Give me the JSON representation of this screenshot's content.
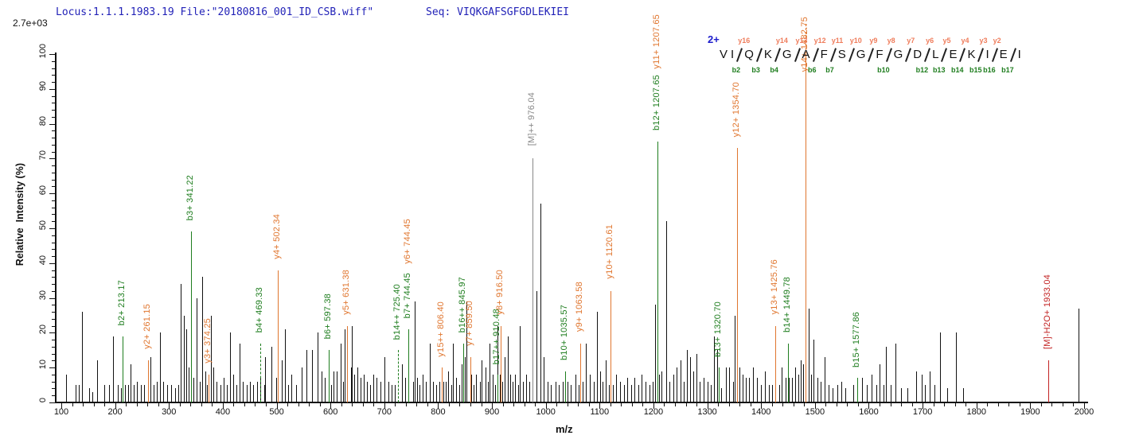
{
  "header": {
    "locus_file": "Locus:1.1.1.1983.19 File:\"20180816_001_ID_CSB.wiff\"",
    "seq": "Seq: VIQKGAFSGFGDLEKIEI",
    "text_color": "#2323b8"
  },
  "intensity_scale_label": "2.7e+03",
  "precursor_charge_label": "2+",
  "colors": {
    "b_ion": "#1e7d1e",
    "y_ion": "#e0762f",
    "y_seq_label": "#ef7d5c",
    "precursor": "#888888",
    "neutral_loss": "#c22222",
    "background_peak": "#111111",
    "header_blue": "#2323b8"
  },
  "sequence_annotation": {
    "cells": [
      {
        "t": "V"
      },
      {
        "t": "I"
      },
      {
        "cut": {
          "y": "y16",
          "b": "b2"
        }
      },
      {
        "t": "Q"
      },
      {
        "cut": {
          "y": "",
          "b": "b3"
        }
      },
      {
        "t": "K"
      },
      {
        "cut": {
          "y": "y14",
          "b": "b4"
        }
      },
      {
        "t": "G"
      },
      {
        "cut": {
          "y": "y13",
          "b": ""
        }
      },
      {
        "t": "A"
      },
      {
        "cut": {
          "y": "y12",
          "b": "b6"
        }
      },
      {
        "t": "F"
      },
      {
        "cut": {
          "y": "y11",
          "b": "b7"
        }
      },
      {
        "t": "S"
      },
      {
        "cut": {
          "y": "y10",
          "b": ""
        }
      },
      {
        "t": "G"
      },
      {
        "cut": {
          "y": "y9",
          "b": ""
        }
      },
      {
        "t": "F"
      },
      {
        "cut": {
          "y": "y8",
          "b": "b10"
        }
      },
      {
        "t": "G"
      },
      {
        "cut": {
          "y": "y7",
          "b": ""
        }
      },
      {
        "t": "D"
      },
      {
        "cut": {
          "y": "y6",
          "b": "b12"
        }
      },
      {
        "t": "L"
      },
      {
        "cut": {
          "y": "y5",
          "b": "b13"
        }
      },
      {
        "t": "E"
      },
      {
        "cut": {
          "y": "y4",
          "b": "b14"
        }
      },
      {
        "t": "K"
      },
      {
        "cut": {
          "y": "y3",
          "b": "b15"
        }
      },
      {
        "t": "I"
      },
      {
        "cut": {
          "y": "y2",
          "b": "b16"
        }
      },
      {
        "t": "E"
      },
      {
        "cut": {
          "y": "",
          "b": "b17"
        }
      },
      {
        "t": "I"
      }
    ]
  },
  "chart_data": {
    "type": "bar",
    "subtype": "ms2-stick-spectrum",
    "title": "",
    "xlabel": "m/z",
    "ylabel": "Relative  Intensity (%)",
    "xlim": [
      100,
      2000
    ],
    "ylim": [
      0,
      100
    ],
    "x_major_tick": 100,
    "x_minor_tick": 20,
    "y_major_tick": 10,
    "y_minor_tick": 2,
    "grid": false,
    "legend": false,
    "peptide_sequence": "VIQKGAFSGFGDLEKIEI",
    "precursor_charge": "2+",
    "labeled_peaks": [
      {
        "label": "b2+ 213.17",
        "mz": 213.17,
        "intensity": 19,
        "ion": "b"
      },
      {
        "label": "y2+ 261.15",
        "mz": 261.15,
        "intensity": 12,
        "ion": "y"
      },
      {
        "label": "b3+ 341.22",
        "mz": 341.22,
        "intensity": 49,
        "ion": "b"
      },
      {
        "label": "y3+ 374.25",
        "mz": 374.25,
        "intensity": 8,
        "ion": "y"
      },
      {
        "label": "b4+ 469.33",
        "mz": 469.33,
        "intensity": 17,
        "ion": "b",
        "dashed": true
      },
      {
        "label": "y4+ 502.34",
        "mz": 502.34,
        "intensity": 38,
        "ion": "y"
      },
      {
        "label": "b6+ 597.38",
        "mz": 597.38,
        "intensity": 15,
        "ion": "b"
      },
      {
        "label": "y5+ 631.38",
        "mz": 631.38,
        "intensity": 22,
        "ion": "y"
      },
      {
        "label": "b14++ 725.40",
        "mz": 725.4,
        "intensity": 15,
        "ion": "b",
        "dashed": true
      },
      {
        "label": "b7+ 744.45",
        "mz": 744.45,
        "intensity": 21,
        "ion": "b"
      },
      {
        "label": "y6+ 744.45",
        "mz": 744.45,
        "intensity": 21,
        "ion": "y",
        "lift": 68,
        "noline": true
      },
      {
        "label": "y15++ 806.40",
        "mz": 806.4,
        "intensity": 10,
        "ion": "y"
      },
      {
        "label": "b16++ 845.97",
        "mz": 845.97,
        "intensity": 17,
        "ion": "b"
      },
      {
        "label": "y7+ 859.50",
        "mz": 859.5,
        "intensity": 13,
        "ion": "y"
      },
      {
        "label": "b17++ 910.48",
        "mz": 910.48,
        "intensity": 8,
        "ion": "b"
      },
      {
        "label": "y8+ 916.50",
        "mz": 916.5,
        "intensity": 22,
        "ion": "y"
      },
      {
        "label": "[M]++ 976.04",
        "mz": 976.04,
        "intensity": 70,
        "ion": "precursor"
      },
      {
        "label": "b10+ 1035.57",
        "mz": 1035.57,
        "intensity": 9,
        "ion": "b"
      },
      {
        "label": "y9+ 1063.58",
        "mz": 1063.58,
        "intensity": 17,
        "ion": "y"
      },
      {
        "label": "y10+ 1120.61",
        "mz": 1120.61,
        "intensity": 32,
        "ion": "y"
      },
      {
        "label": "b12+ 1207.65",
        "mz": 1207.65,
        "intensity": 75,
        "ion": "b"
      },
      {
        "label": "y11+ 1207.65",
        "mz": 1207.65,
        "intensity": 75,
        "ion": "y",
        "lift": 76,
        "noline": true
      },
      {
        "label": "b13+ 1320.70",
        "mz": 1320.7,
        "intensity": 10,
        "ion": "b"
      },
      {
        "label": "y12+ 1354.70",
        "mz": 1354.7,
        "intensity": 73,
        "ion": "y"
      },
      {
        "label": "y13+ 1425.76",
        "mz": 1425.76,
        "intensity": 22,
        "ion": "y"
      },
      {
        "label": "b14+ 1449.78",
        "mz": 1449.78,
        "intensity": 17,
        "ion": "b"
      },
      {
        "label": "y14+ 1482.75",
        "mz": 1482.75,
        "intensity": 100,
        "ion": "y",
        "lift": -36
      },
      {
        "label": "b15+ 1577.86",
        "mz": 1577.86,
        "intensity": 7,
        "ion": "b"
      },
      {
        "label": "[M]-H2O+ 1933.04",
        "mz": 1933.04,
        "intensity": 12,
        "ion": "neutral-loss"
      }
    ],
    "background_peaks": [
      [
        109,
        8
      ],
      [
        126,
        5
      ],
      [
        133,
        5
      ],
      [
        139,
        26
      ],
      [
        152,
        4
      ],
      [
        158,
        3
      ],
      [
        166,
        12
      ],
      [
        180,
        5
      ],
      [
        189,
        5
      ],
      [
        196,
        19
      ],
      [
        205,
        5
      ],
      [
        211,
        4
      ],
      [
        218,
        5
      ],
      [
        224,
        5
      ],
      [
        228,
        11
      ],
      [
        234,
        5
      ],
      [
        241,
        6
      ],
      [
        248,
        5
      ],
      [
        254,
        5
      ],
      [
        266,
        13
      ],
      [
        271,
        5
      ],
      [
        277,
        6
      ],
      [
        283,
        20
      ],
      [
        289,
        6
      ],
      [
        296,
        5
      ],
      [
        304,
        5
      ],
      [
        311,
        4
      ],
      [
        317,
        5
      ],
      [
        322,
        34
      ],
      [
        327,
        25
      ],
      [
        332,
        21
      ],
      [
        337,
        10
      ],
      [
        345,
        7
      ],
      [
        352,
        30
      ],
      [
        357,
        6
      ],
      [
        362,
        36
      ],
      [
        368,
        9
      ],
      [
        371,
        5
      ],
      [
        378,
        25
      ],
      [
        383,
        10
      ],
      [
        389,
        6
      ],
      [
        396,
        5
      ],
      [
        402,
        7
      ],
      [
        408,
        5
      ],
      [
        413,
        20
      ],
      [
        419,
        8
      ],
      [
        426,
        5
      ],
      [
        431,
        17
      ],
      [
        437,
        6
      ],
      [
        444,
        5
      ],
      [
        451,
        6
      ],
      [
        457,
        5
      ],
      [
        464,
        6
      ],
      [
        470,
        7
      ],
      [
        477,
        5
      ],
      [
        479,
        13
      ],
      [
        491,
        16
      ],
      [
        499,
        7
      ],
      [
        509,
        12
      ],
      [
        515,
        21
      ],
      [
        521,
        5
      ],
      [
        528,
        8
      ],
      [
        536,
        5
      ],
      [
        547,
        10
      ],
      [
        555,
        15
      ],
      [
        566,
        15
      ],
      [
        576,
        20
      ],
      [
        583,
        9
      ],
      [
        590,
        7
      ],
      [
        601,
        5
      ],
      [
        605,
        9
      ],
      [
        612,
        9
      ],
      [
        619,
        17
      ],
      [
        623,
        6
      ],
      [
        627,
        21
      ],
      [
        638,
        10
      ],
      [
        640,
        22
      ],
      [
        644,
        8
      ],
      [
        650,
        10
      ],
      [
        656,
        7
      ],
      [
        662,
        8
      ],
      [
        668,
        6
      ],
      [
        674,
        5
      ],
      [
        680,
        8
      ],
      [
        686,
        7
      ],
      [
        693,
        6
      ],
      [
        700,
        13
      ],
      [
        707,
        6
      ],
      [
        714,
        5
      ],
      [
        719,
        5
      ],
      [
        733,
        11
      ],
      [
        739,
        7
      ],
      [
        753,
        6
      ],
      [
        756,
        29
      ],
      [
        761,
        7
      ],
      [
        766,
        5
      ],
      [
        771,
        8
      ],
      [
        777,
        6
      ],
      [
        785,
        17
      ],
      [
        790,
        6
      ],
      [
        796,
        5
      ],
      [
        802,
        6
      ],
      [
        809,
        6
      ],
      [
        814,
        6
      ],
      [
        819,
        9
      ],
      [
        824,
        5
      ],
      [
        828,
        17
      ],
      [
        833,
        7
      ],
      [
        839,
        5
      ],
      [
        843,
        11
      ],
      [
        849,
        13
      ],
      [
        853,
        29
      ],
      [
        862,
        8
      ],
      [
        866,
        5
      ],
      [
        871,
        8
      ],
      [
        877,
        6
      ],
      [
        881,
        12
      ],
      [
        888,
        10
      ],
      [
        892,
        6
      ],
      [
        896,
        17
      ],
      [
        901,
        8
      ],
      [
        906,
        5
      ],
      [
        910,
        22
      ],
      [
        914,
        8
      ],
      [
        919,
        6
      ],
      [
        924,
        13
      ],
      [
        929,
        19
      ],
      [
        934,
        8
      ],
      [
        938,
        6
      ],
      [
        943,
        8
      ],
      [
        948,
        5
      ],
      [
        951,
        22
      ],
      [
        957,
        6
      ],
      [
        963,
        8
      ],
      [
        969,
        6
      ],
      [
        982,
        32
      ],
      [
        990,
        57
      ],
      [
        996,
        13
      ],
      [
        1003,
        6
      ],
      [
        1010,
        5
      ],
      [
        1018,
        6
      ],
      [
        1024,
        5
      ],
      [
        1031,
        6
      ],
      [
        1040,
        6
      ],
      [
        1047,
        5
      ],
      [
        1055,
        8
      ],
      [
        1061,
        5
      ],
      [
        1068,
        6
      ],
      [
        1075,
        17
      ],
      [
        1082,
        8
      ],
      [
        1089,
        6
      ],
      [
        1095,
        26
      ],
      [
        1101,
        9
      ],
      [
        1106,
        6
      ],
      [
        1112,
        12
      ],
      [
        1118,
        5
      ],
      [
        1125,
        5
      ],
      [
        1131,
        8
      ],
      [
        1138,
        6
      ],
      [
        1145,
        5
      ],
      [
        1151,
        7
      ],
      [
        1158,
        5
      ],
      [
        1164,
        7
      ],
      [
        1172,
        5
      ],
      [
        1178,
        8
      ],
      [
        1185,
        6
      ],
      [
        1192,
        5
      ],
      [
        1199,
        6
      ],
      [
        1203,
        28
      ],
      [
        1210,
        8
      ],
      [
        1215,
        9
      ],
      [
        1224,
        52
      ],
      [
        1230,
        6
      ],
      [
        1237,
        8
      ],
      [
        1243,
        10
      ],
      [
        1250,
        12
      ],
      [
        1256,
        6
      ],
      [
        1262,
        15
      ],
      [
        1268,
        13
      ],
      [
        1274,
        9
      ],
      [
        1280,
        14
      ],
      [
        1286,
        6
      ],
      [
        1293,
        7
      ],
      [
        1300,
        6
      ],
      [
        1307,
        5
      ],
      [
        1313,
        19
      ],
      [
        1318,
        15
      ],
      [
        1326,
        4
      ],
      [
        1335,
        10
      ],
      [
        1341,
        10
      ],
      [
        1348,
        6
      ],
      [
        1351,
        25
      ],
      [
        1356,
        18
      ],
      [
        1360,
        10
      ],
      [
        1366,
        8
      ],
      [
        1371,
        7
      ],
      [
        1378,
        7
      ],
      [
        1385,
        10
      ],
      [
        1392,
        7
      ],
      [
        1399,
        5
      ],
      [
        1407,
        9
      ],
      [
        1414,
        5
      ],
      [
        1420,
        5
      ],
      [
        1433,
        5
      ],
      [
        1438,
        10
      ],
      [
        1445,
        7
      ],
      [
        1452,
        7
      ],
      [
        1457,
        7
      ],
      [
        1463,
        10
      ],
      [
        1469,
        8
      ],
      [
        1474,
        12
      ],
      [
        1478,
        11
      ],
      [
        1488,
        27
      ],
      [
        1493,
        8
      ],
      [
        1497,
        18
      ],
      [
        1505,
        7
      ],
      [
        1511,
        6
      ],
      [
        1518,
        13
      ],
      [
        1526,
        5
      ],
      [
        1533,
        4
      ],
      [
        1541,
        5
      ],
      [
        1549,
        6
      ],
      [
        1557,
        4
      ],
      [
        1571,
        5
      ],
      [
        1588,
        7
      ],
      [
        1596,
        5
      ],
      [
        1605,
        8
      ],
      [
        1614,
        5
      ],
      [
        1620,
        11
      ],
      [
        1628,
        5
      ],
      [
        1632,
        16
      ],
      [
        1640,
        5
      ],
      [
        1650,
        17
      ],
      [
        1660,
        4
      ],
      [
        1672,
        4
      ],
      [
        1688,
        9
      ],
      [
        1698,
        8
      ],
      [
        1705,
        5
      ],
      [
        1713,
        9
      ],
      [
        1722,
        5
      ],
      [
        1732,
        20
      ],
      [
        1745,
        4
      ],
      [
        1762,
        20
      ],
      [
        1775,
        4
      ],
      [
        1990,
        27
      ]
    ]
  }
}
